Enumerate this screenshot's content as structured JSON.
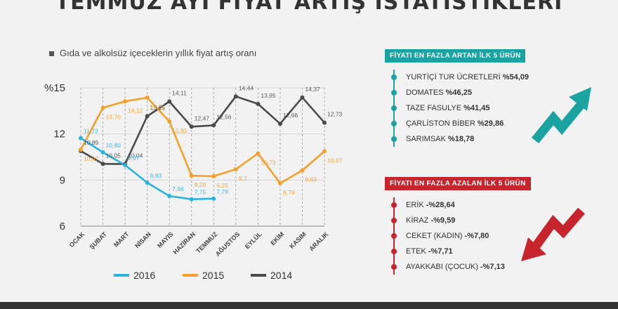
{
  "title": "TEMMUZ AYI FİYAT ARTIŞ İSTATİSTİKLERİ",
  "subtitle": "Gıda ve alkolsüz içeceklerin yıllık fiyat artış oranı",
  "colors": {
    "s2016": "#2ab3e0",
    "s2015": "#f5a02a",
    "s2014": "#4a4a4a",
    "increase": "#1aa3a1",
    "decrease": "#c7252e"
  },
  "increase_panel": {
    "header": "FİYATI EN FAZLA ARTAN İLK 5 ÜRÜN",
    "items": [
      {
        "name": "YURTİÇİ TUR ÜCRETLERİ",
        "value": "%54,09"
      },
      {
        "name": "DOMATES",
        "value": "%46,25"
      },
      {
        "name": "TAZE FASULYE",
        "value": "%41,45"
      },
      {
        "name": "ÇARLİSTON BİBER",
        "value": "%29,86"
      },
      {
        "name": "SARIMSAK",
        "value": "%18,78"
      }
    ]
  },
  "decrease_panel": {
    "header": "FİYATI EN FAZLA AZALAN İLK 5 ÜRÜN",
    "items": [
      {
        "name": "ERİK",
        "value": "-%28,64"
      },
      {
        "name": "KİRAZ",
        "value": "-%9,59"
      },
      {
        "name": "CEKET (KADIN)",
        "value": "-%7,80"
      },
      {
        "name": "ETEK",
        "value": "-%7,71"
      },
      {
        "name": "AYAKKABI (ÇOCUK)",
        "value": "-%7,13"
      }
    ]
  },
  "chart_data": {
    "type": "line",
    "categories": [
      "OCAK",
      "ŞUBAT",
      "MART",
      "NİSAN",
      "MAYIS",
      "HAZİRAN",
      "TEMMUZ",
      "AĞUSTOS",
      "EYLÜL",
      "EKİM",
      "KASIM",
      "ARALIK"
    ],
    "ylabel": "%",
    "ylim": [
      6,
      15
    ],
    "yticks": [
      6,
      9,
      12,
      15
    ],
    "ytick_labels": [
      "6",
      "9",
      "12",
      "%15"
    ],
    "series": [
      {
        "name": "2016",
        "color": "#2ab3e0",
        "values": [
          11.73,
          10.8,
          9.97,
          8.83,
          7.96,
          7.75,
          7.79,
          null,
          null,
          null,
          null,
          null
        ],
        "labels": [
          "11,73",
          "10,80",
          "9,97",
          "8,83",
          "7,96",
          "7,75",
          "7,79",
          null,
          null,
          null,
          null,
          null
        ]
      },
      {
        "name": "2015",
        "color": "#f5a02a",
        "values": [
          10.97,
          13.7,
          14.12,
          14.36,
          12.81,
          9.28,
          9.25,
          9.7,
          10.73,
          8.79,
          9.63,
          10.87
        ],
        "labels": [
          "10,97",
          "13,70",
          "14,12",
          "14,36",
          "12,81",
          "9,28",
          "9,25",
          "9,7",
          "10,73",
          "8,79",
          "9,63",
          "10,87"
        ]
      },
      {
        "name": "2014",
        "color": "#4a4a4a",
        "values": [
          10.89,
          10.05,
          10.04,
          13.15,
          14.11,
          12.47,
          12.56,
          14.44,
          13.95,
          12.66,
          14.37,
          12.73
        ],
        "labels": [
          "10,89",
          "10,05",
          "10,04",
          "13,15",
          "14,11",
          "12,47",
          "12,56",
          "14,44",
          "13,95",
          "12,66",
          "14,37",
          "12,73"
        ]
      }
    ],
    "legend": {
      "position": "bottom"
    }
  }
}
